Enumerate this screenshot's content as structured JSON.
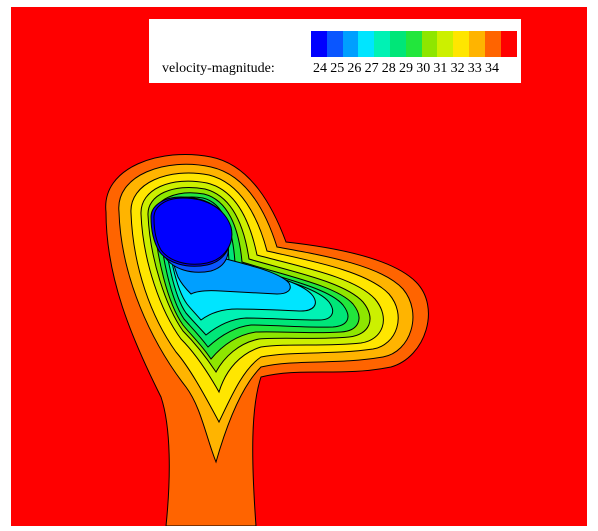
{
  "chart_data": {
    "type": "heatmap",
    "title": "",
    "legend": {
      "title": "velocity-magnitude:",
      "placement": "top-center",
      "tick_labels": [
        "24",
        "25",
        "26",
        "27",
        "28",
        "29",
        "30",
        "31",
        "32",
        "33",
        "34"
      ],
      "color_bands": [
        "#0000ff",
        "#0a56ff",
        "#009fff",
        "#00e5ff",
        "#00f2b4",
        "#00e678",
        "#22e63c",
        "#8ee600",
        "#ccf000",
        "#ffe600",
        "#ffb400",
        "#ff6400",
        "#ff0000"
      ]
    },
    "levels": [
      24,
      25,
      26,
      27,
      28,
      29,
      30,
      31,
      32,
      33,
      34
    ],
    "background_color": "#ff0000",
    "min_region": "blue core (~24) in upper-left lobe",
    "max_region": "surrounding field (>=34)"
  }
}
